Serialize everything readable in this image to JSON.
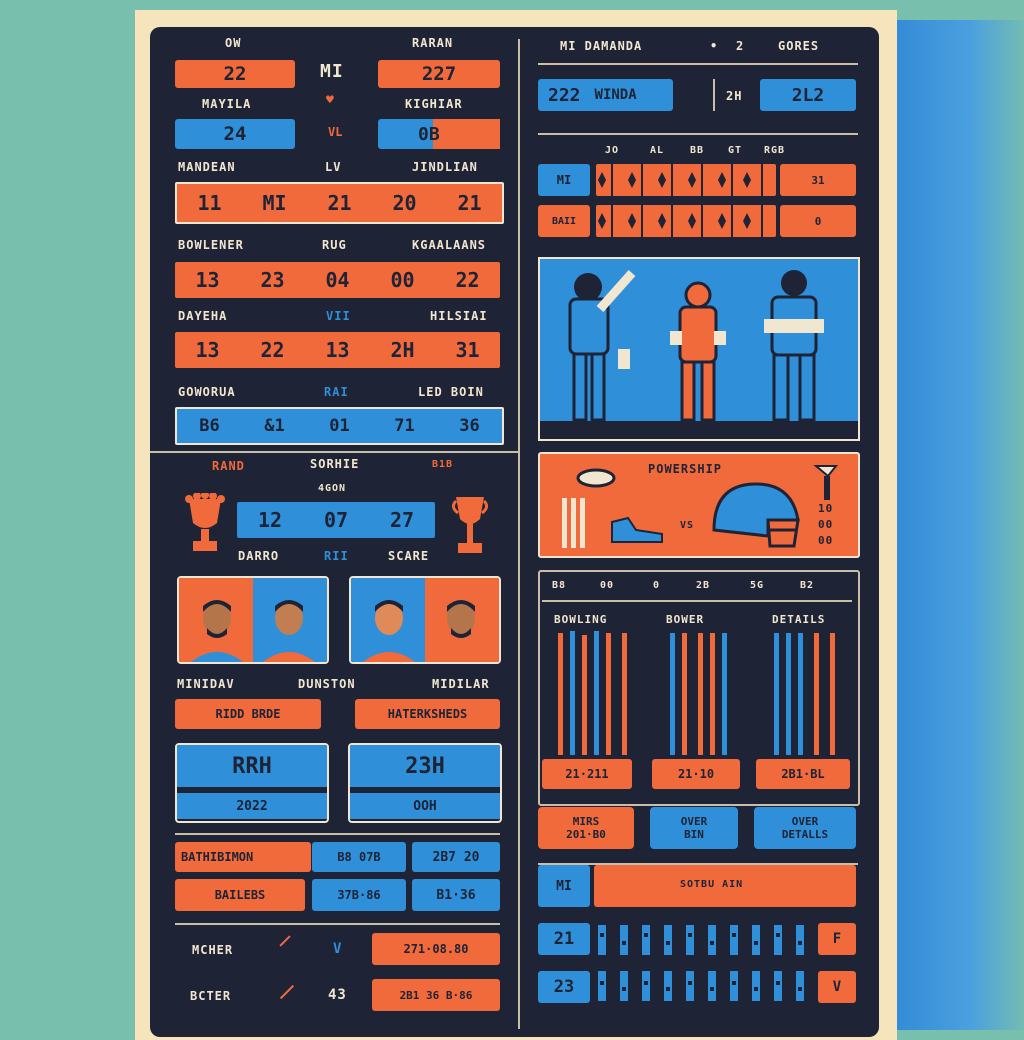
{
  "left": {
    "top_labels": [
      "OW",
      "RARAN",
      "MAYILA",
      "KIGHIAR",
      "MANDEAN",
      "LV",
      "JINDLIAN"
    ],
    "center_marks": [
      "MI",
      "♥",
      "VL"
    ],
    "score_boxes": [
      "22",
      "227",
      "24",
      "0B"
    ],
    "row1": [
      "11",
      "MI",
      "21",
      "20",
      "21"
    ],
    "row1_labels": [
      "BOWLENER",
      "RUG",
      "KGAALAANS"
    ],
    "row2": [
      "13",
      "23",
      "04",
      "00",
      "22"
    ],
    "row2_labels": [
      "DAYEHA",
      "VII",
      "HILSIAI"
    ],
    "row3": [
      "13",
      "22",
      "13",
      "2H",
      "31"
    ],
    "row3_labels": [
      "GOWORUA",
      "RAI",
      "LED BOIN"
    ],
    "row4": [
      "B6",
      "&1",
      "01",
      "71",
      "36"
    ],
    "trophy": {
      "labels": [
        "RAND",
        "SORHIE",
        "4GON"
      ],
      "counter": [
        "12",
        "07",
        "27"
      ],
      "bottom_labels": [
        "DARRO",
        "RII",
        "SCARE"
      ],
      "left_value": "B1B"
    },
    "card_labels": [
      "MINIDAV",
      "DUNSTON",
      "MIDILAR"
    ],
    "buttons": [
      "RIDD BRDE",
      "HATERKSHEDS"
    ],
    "stat_blocks": [
      {
        "big": "RRH",
        "small": "2022"
      },
      {
        "big": "23H",
        "small": "OOH"
      }
    ],
    "table": {
      "rows": [
        {
          "label": "BATHIBIMON",
          "v1": "B8 07B",
          "v2": "2B7 20"
        },
        {
          "label": "BAILEBS",
          "v1": "37B·86",
          "v2": "B1·36"
        }
      ]
    },
    "footer": [
      {
        "label": "MCHER",
        "mark": "V",
        "value": "271·08.80"
      },
      {
        "label": "BCTER",
        "mark": "43",
        "value": "2B1 36 B·86"
      }
    ]
  },
  "right": {
    "header": {
      "title": "MI DAMANDA",
      "dot": "•",
      "num": "2",
      "right": "GORES"
    },
    "score": {
      "left": "222",
      "left_name": "WINDA",
      "mid": "2H",
      "right": "2L2"
    },
    "grid_headers": [
      "JO",
      "AL",
      "BB",
      "GT",
      "RGB"
    ],
    "grid_rows": [
      {
        "team": "MI",
        "value": "31"
      },
      {
        "team": "BAII",
        "value": "0"
      }
    ],
    "powership": {
      "title": "POWERSHIP",
      "vs": "VS",
      "values": [
        "10",
        "00",
        "00"
      ]
    },
    "bars_header": [
      "B8",
      "00",
      "0",
      "2B",
      "5G",
      "B2"
    ],
    "bar_groups": [
      "BOWLING",
      "BOWER",
      "DETAILS"
    ],
    "bar_values": [
      "21·211",
      "21·10",
      "2B1·BL"
    ],
    "buttons": [
      {
        "top": "MIRS",
        "bottom": "201·B0"
      },
      {
        "top": "OVER",
        "bottom": "BIN"
      },
      {
        "top": "OVER",
        "bottom": "DETALLS"
      }
    ],
    "team_bar": {
      "team": "MI",
      "text": "SOTBU AIN"
    },
    "ticks": [
      {
        "num": "21",
        "end": "F"
      },
      {
        "num": "23",
        "end": "V"
      }
    ]
  },
  "colors": {
    "navy": "#1e2336",
    "orange": "#f06a3c",
    "blue": "#2f8fd8",
    "cream": "#f1e6cf"
  }
}
